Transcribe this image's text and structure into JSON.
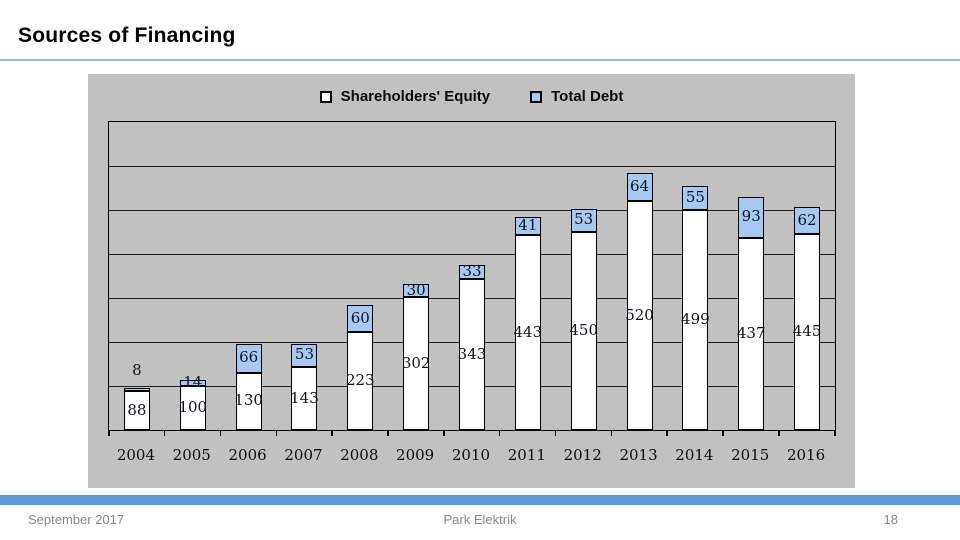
{
  "slide": {
    "title": "Sources of Financing",
    "footer": {
      "date": "September 2017",
      "company": "Park Elektrik",
      "page_number": "18"
    }
  },
  "colors": {
    "accent_blue": "#5B9BD5",
    "debt_fill": "#A7C9F1",
    "equity_fill": "#FFFFFF",
    "chart_background": "#C1C1C1",
    "bar_border": "#000000",
    "title_rule": "#9BBDD4",
    "footer_text": "#8A8A8A"
  },
  "chart_data": {
    "type": "bar",
    "stacked": true,
    "title": "",
    "xlabel": "",
    "ylabel": "",
    "categories": [
      "2004",
      "2005",
      "2006",
      "2007",
      "2008",
      "2009",
      "2010",
      "2011",
      "2012",
      "2013",
      "2014",
      "2015",
      "2016"
    ],
    "series": [
      {
        "name": "Shareholders' Equity",
        "values": [
          88,
          100,
          130,
          143,
          223,
          302,
          343,
          443,
          450,
          520,
          499,
          437,
          445
        ],
        "fill": "#FFFFFF"
      },
      {
        "name": "Total Debt",
        "values": [
          8,
          14,
          66,
          53,
          60,
          30,
          33,
          41,
          53,
          64,
          55,
          93,
          62
        ],
        "fill": "#A7C9F1"
      }
    ],
    "ylim": [
      0,
      700
    ],
    "gridline_step": 100,
    "grid": true,
    "y_axis_labels_visible": false,
    "legend_position": "top-center",
    "data_labels": true
  }
}
